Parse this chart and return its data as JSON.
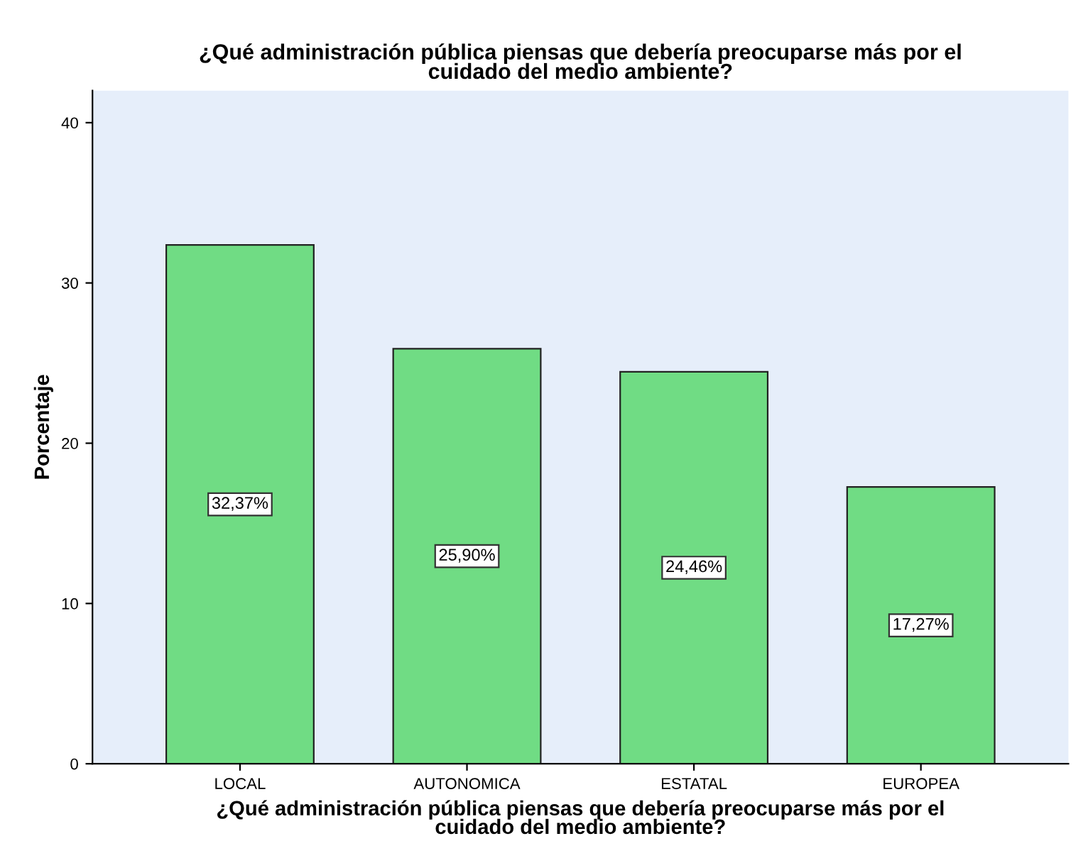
{
  "chart_data": {
    "type": "bar",
    "title": "¿Qué administración pública piensas que debería preocuparse más por el\ncuidado del medio ambiente?",
    "xlabel": "¿Qué administración pública piensas que debería preocuparse más por el\ncuidado del medio ambiente?",
    "ylabel": "Porcentaje",
    "categories": [
      "LOCAL",
      "AUTONOMICA",
      "ESTATAL",
      "EUROPEA"
    ],
    "values": [
      32.37,
      25.9,
      24.46,
      17.27
    ],
    "value_labels": [
      "32,37%",
      "25,90%",
      "24,46%",
      "17,27%"
    ],
    "color": "#70dc84",
    "ylim": [
      0,
      42
    ],
    "yticks": [
      0,
      10,
      20,
      30,
      40
    ],
    "grid": false
  }
}
